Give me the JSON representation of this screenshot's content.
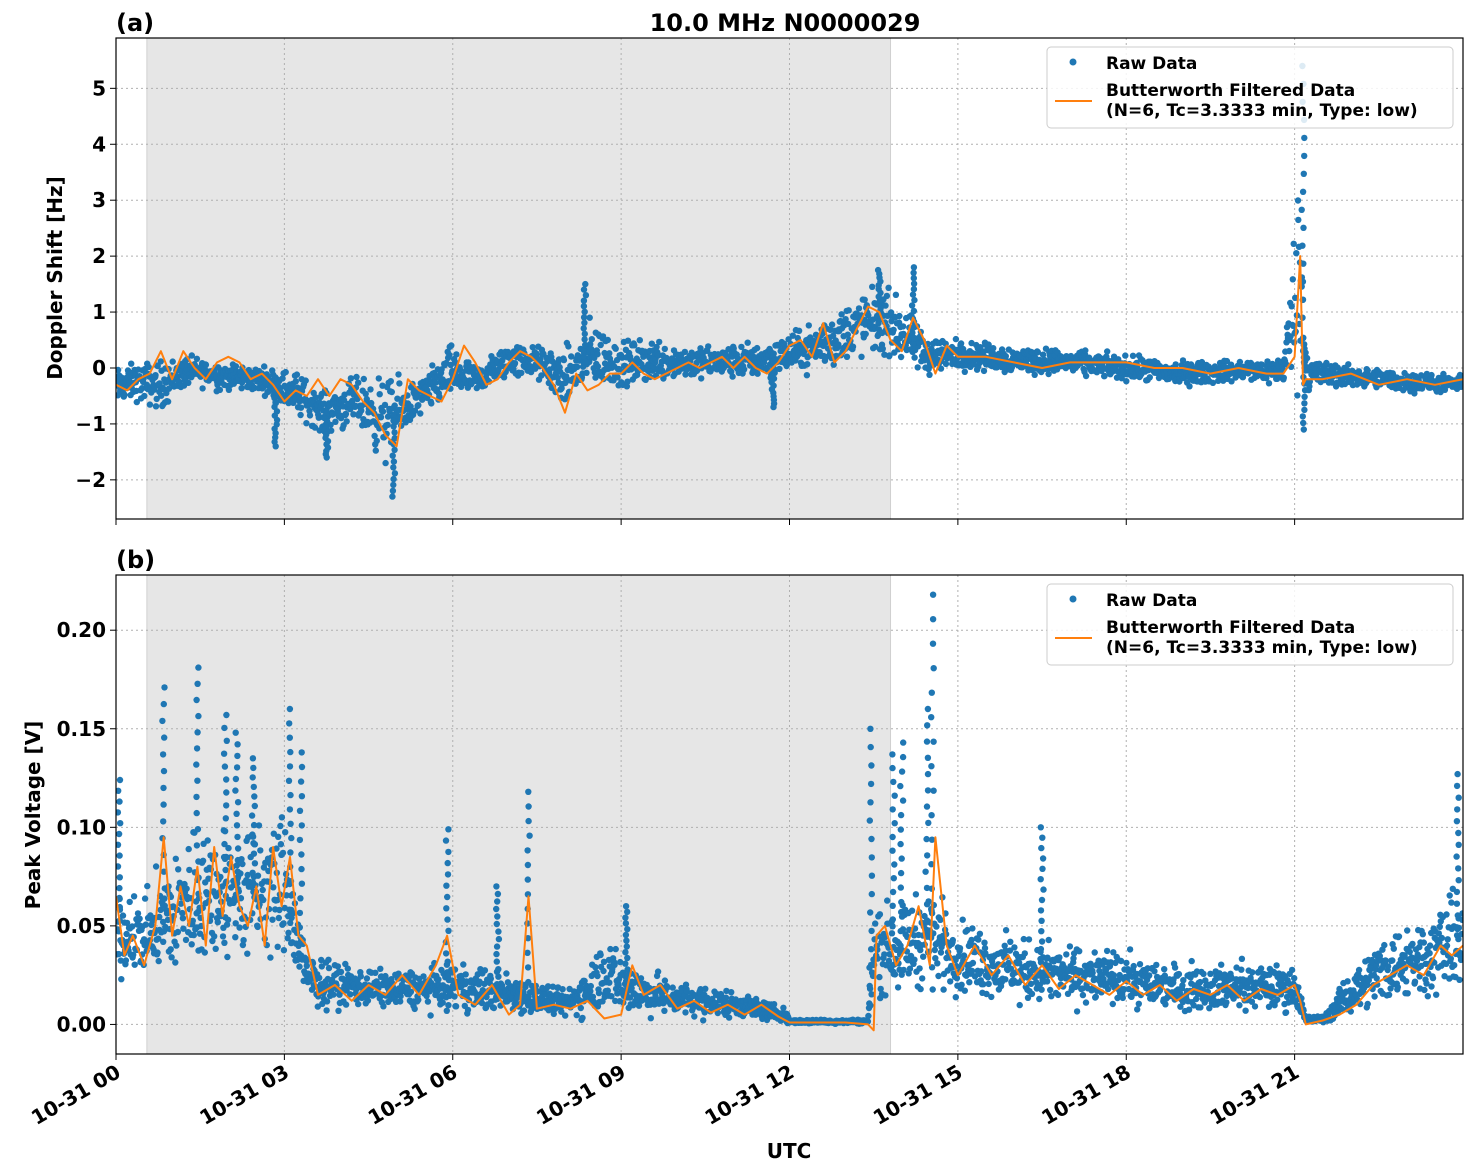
{
  "figure": {
    "title": "10.0 MHz N0000029",
    "xlabel": "UTC",
    "x_ticks": [
      "10-31 00",
      "10-31 03",
      "10-31 06",
      "10-31 09",
      "10-31 12",
      "10-31 15",
      "10-31 18",
      "10-31 21"
    ]
  },
  "colors": {
    "raw": "#1f77b4",
    "filtered": "#ff7f0e",
    "shade": "#e6e6e6",
    "grid": "#b0b0b0"
  },
  "chart_data": [
    {
      "type": "scatter",
      "panel_label": "(a)",
      "title": "10.0 MHz N0000029",
      "xlabel": "",
      "ylabel": "Doppler Shift [Hz]",
      "x_unit": "hours UTC on 10-31",
      "xlim": [
        0,
        24
      ],
      "ylim": [
        -2.7,
        5.9
      ],
      "y_ticks": [
        -2,
        -1,
        0,
        1,
        2,
        3,
        4,
        5
      ],
      "y_tick_labels": [
        "−2",
        "−1",
        "0",
        "1",
        "2",
        "3",
        "4",
        "5"
      ],
      "grid": true,
      "legend_position": "top-right",
      "shaded_interval": [
        0.55,
        13.8
      ],
      "series": [
        {
          "name": "Raw Data",
          "style": "points",
          "envelope": {
            "x": [
              0,
              0.3,
              0.8,
              1.3,
              2.0,
              2.6,
              3.2,
              3.7,
              4.3,
              4.8,
              5.0,
              5.4,
              6.0,
              6.4,
              7.0,
              7.5,
              8.0,
              8.5,
              9.0,
              9.6,
              10.2,
              10.8,
              11.5,
              12.2,
              12.8,
              13.3,
              13.8,
              14.4,
              15.0,
              16.0,
              17.0,
              18.0,
              19.0,
              20.0,
              20.8,
              21.1,
              21.2,
              21.4,
              22.0,
              23.0,
              24.0
            ],
            "low": [
              -0.8,
              -0.7,
              -0.9,
              -0.4,
              -0.5,
              -0.5,
              -1.0,
              -1.3,
              -1.2,
              -2.0,
              -1.6,
              -1.0,
              -0.7,
              -0.6,
              -0.3,
              -0.3,
              -0.9,
              -0.6,
              -0.5,
              -0.4,
              -0.3,
              -0.3,
              -0.3,
              -0.2,
              -0.2,
              0.0,
              0.0,
              -0.3,
              -0.1,
              -0.2,
              -0.2,
              -0.3,
              -0.4,
              -0.3,
              -0.4,
              -0.9,
              -0.5,
              -0.5,
              -0.4,
              -0.5,
              -0.5
            ],
            "high": [
              0.1,
              0.2,
              0.3,
              0.3,
              0.2,
              0.1,
              0.1,
              -0.3,
              0.0,
              0.1,
              0.0,
              -0.1,
              0.6,
              0.1,
              0.6,
              0.5,
              0.5,
              1.1,
              0.6,
              0.7,
              0.5,
              0.5,
              0.6,
              0.8,
              1.2,
              1.6,
              1.6,
              0.8,
              0.6,
              0.5,
              0.4,
              0.3,
              0.2,
              0.2,
              0.3,
              4.5,
              0.5,
              0.3,
              0.1,
              0.0,
              -0.1
            ]
          },
          "spikes": [
            {
              "x": 2.85,
              "y": -1.4
            },
            {
              "x": 3.75,
              "y": -1.6
            },
            {
              "x": 4.95,
              "y": -2.3
            },
            {
              "x": 8.35,
              "y": 1.5
            },
            {
              "x": 14.2,
              "y": 1.8
            },
            {
              "x": 13.6,
              "y": 1.75
            },
            {
              "x": 21.15,
              "y": 5.4
            },
            {
              "x": 21.17,
              "y": -1.1
            },
            {
              "x": 11.7,
              "y": -0.7
            }
          ]
        },
        {
          "name": "Butterworth Filtered Data\n(N=6, Tc=3.3333 min, Type: low)",
          "style": "line",
          "x": [
            0,
            0.2,
            0.4,
            0.6,
            0.8,
            1.0,
            1.2,
            1.4,
            1.6,
            1.8,
            2.0,
            2.2,
            2.4,
            2.6,
            2.8,
            3.0,
            3.2,
            3.4,
            3.6,
            3.8,
            4.0,
            4.2,
            4.4,
            4.6,
            4.8,
            5.0,
            5.2,
            5.4,
            5.6,
            5.8,
            6.0,
            6.2,
            6.4,
            6.6,
            6.8,
            7.0,
            7.2,
            7.4,
            7.6,
            7.8,
            8.0,
            8.2,
            8.4,
            8.6,
            8.8,
            9.0,
            9.2,
            9.4,
            9.6,
            9.8,
            10.0,
            10.2,
            10.4,
            10.6,
            10.8,
            11.0,
            11.2,
            11.4,
            11.6,
            11.8,
            12.0,
            12.2,
            12.4,
            12.6,
            12.8,
            13.0,
            13.2,
            13.4,
            13.6,
            13.8,
            14.0,
            14.2,
            14.4,
            14.6,
            14.8,
            15.0,
            15.5,
            16.0,
            16.5,
            17.0,
            17.5,
            18.0,
            18.5,
            19.0,
            19.5,
            20.0,
            20.5,
            20.8,
            21.0,
            21.1,
            21.15,
            21.2,
            21.3,
            21.5,
            22.0,
            22.5,
            23.0,
            23.5,
            24.0
          ],
          "y": [
            -0.3,
            -0.4,
            -0.2,
            -0.1,
            0.3,
            -0.2,
            0.3,
            0.0,
            -0.2,
            0.1,
            0.2,
            0.1,
            -0.2,
            -0.1,
            -0.3,
            -0.6,
            -0.4,
            -0.5,
            -0.2,
            -0.5,
            -0.2,
            -0.3,
            -0.6,
            -0.8,
            -1.2,
            -1.4,
            -0.2,
            -0.4,
            -0.5,
            -0.6,
            -0.2,
            0.4,
            0.1,
            -0.3,
            -0.2,
            0.1,
            0.3,
            0.2,
            0.0,
            -0.3,
            -0.8,
            -0.1,
            -0.4,
            -0.3,
            -0.1,
            -0.1,
            0.1,
            -0.1,
            -0.2,
            -0.1,
            0.0,
            0.1,
            0.0,
            0.1,
            0.2,
            0.0,
            0.2,
            0.0,
            -0.1,
            0.1,
            0.4,
            0.5,
            0.2,
            0.8,
            0.1,
            0.3,
            0.7,
            1.1,
            1.0,
            0.5,
            0.3,
            0.9,
            0.5,
            -0.1,
            0.4,
            0.2,
            0.2,
            0.1,
            0.0,
            0.1,
            0.1,
            0.1,
            0.0,
            0.0,
            -0.1,
            0.0,
            -0.1,
            -0.1,
            0.2,
            2.0,
            -0.3,
            -0.2,
            -0.2,
            -0.2,
            -0.1,
            -0.3,
            -0.2,
            -0.3,
            -0.2
          ]
        }
      ]
    },
    {
      "type": "scatter",
      "panel_label": "(b)",
      "title": "",
      "xlabel": "UTC",
      "ylabel": "Peak Voltage [V]",
      "x_unit": "hours UTC on 10-31",
      "xlim": [
        0,
        24
      ],
      "ylim": [
        -0.015,
        0.228
      ],
      "y_ticks": [
        0.0,
        0.05,
        0.1,
        0.15,
        0.2
      ],
      "y_tick_labels": [
        "0.00",
        "0.05",
        "0.10",
        "0.15",
        "0.20"
      ],
      "grid": true,
      "legend_position": "top-right",
      "shaded_interval": [
        0.55,
        13.8
      ],
      "series": [
        {
          "name": "Raw Data",
          "style": "points",
          "envelope": {
            "x": [
              0,
              0.5,
              1.0,
              1.5,
              2.0,
              2.5,
              3.0,
              3.4,
              4.0,
              5.0,
              6.0,
              7.0,
              8.0,
              8.3,
              8.7,
              9.0,
              9.5,
              10.0,
              11.0,
              11.9,
              12.0,
              13.0,
              13.4,
              13.5,
              14.0,
              14.5,
              15.0,
              16.0,
              17.0,
              18.0,
              19.0,
              20.0,
              21.0,
              21.2,
              21.5,
              22.0,
              22.5,
              23.0,
              23.5,
              24.0
            ],
            "low": [
              0.015,
              0.02,
              0.01,
              0.015,
              0.02,
              0.015,
              0.02,
              0.005,
              0.005,
              0.005,
              0.003,
              0.002,
              0.001,
              0.0,
              0.0,
              0.0,
              0.001,
              0.001,
              0.001,
              0.0,
              0.0,
              0.0,
              0.0,
              0.005,
              0.01,
              0.01,
              0.01,
              0.005,
              0.005,
              0.005,
              0.003,
              0.003,
              0.003,
              0.0,
              0.0,
              0.002,
              0.005,
              0.005,
              0.008,
              0.01
            ],
            "high": [
              0.08,
              0.07,
              0.1,
              0.12,
              0.11,
              0.12,
              0.12,
              0.04,
              0.035,
              0.03,
              0.035,
              0.03,
              0.02,
              0.03,
              0.055,
              0.04,
              0.03,
              0.025,
              0.02,
              0.01,
              0.003,
              0.003,
              0.003,
              0.07,
              0.07,
              0.08,
              0.06,
              0.05,
              0.045,
              0.04,
              0.035,
              0.035,
              0.035,
              0.005,
              0.005,
              0.03,
              0.05,
              0.06,
              0.065,
              0.08
            ]
          },
          "spikes": [
            {
              "x": 0.05,
              "y": 0.124
            },
            {
              "x": 0.85,
              "y": 0.171
            },
            {
              "x": 1.45,
              "y": 0.181
            },
            {
              "x": 1.95,
              "y": 0.157
            },
            {
              "x": 2.15,
              "y": 0.148
            },
            {
              "x": 2.45,
              "y": 0.135
            },
            {
              "x": 3.1,
              "y": 0.16
            },
            {
              "x": 3.3,
              "y": 0.138
            },
            {
              "x": 5.9,
              "y": 0.099
            },
            {
              "x": 7.35,
              "y": 0.118
            },
            {
              "x": 9.1,
              "y": 0.06
            },
            {
              "x": 13.45,
              "y": 0.15
            },
            {
              "x": 13.85,
              "y": 0.137
            },
            {
              "x": 14.0,
              "y": 0.143
            },
            {
              "x": 14.55,
              "y": 0.218
            },
            {
              "x": 14.45,
              "y": 0.16
            },
            {
              "x": 23.9,
              "y": 0.127
            },
            {
              "x": 16.5,
              "y": 0.1
            },
            {
              "x": 6.8,
              "y": 0.07
            }
          ]
        },
        {
          "name": "Butterworth Filtered Data\n(N=6, Tc=3.3333 min, Type: low)",
          "style": "line",
          "x": [
            0,
            0.15,
            0.3,
            0.5,
            0.7,
            0.85,
            1.0,
            1.15,
            1.3,
            1.45,
            1.6,
            1.75,
            1.9,
            2.05,
            2.2,
            2.35,
            2.5,
            2.65,
            2.8,
            2.95,
            3.1,
            3.25,
            3.4,
            3.6,
            3.9,
            4.2,
            4.5,
            4.8,
            5.1,
            5.4,
            5.7,
            5.9,
            6.1,
            6.4,
            6.7,
            7.0,
            7.2,
            7.35,
            7.5,
            7.8,
            8.1,
            8.4,
            8.7,
            9.0,
            9.2,
            9.4,
            9.7,
            10.0,
            10.3,
            10.6,
            10.9,
            11.2,
            11.5,
            11.8,
            12.0,
            12.5,
            13.0,
            13.4,
            13.5,
            13.55,
            13.7,
            13.9,
            14.1,
            14.3,
            14.5,
            14.6,
            14.8,
            15.0,
            15.3,
            15.6,
            15.9,
            16.2,
            16.5,
            16.8,
            17.1,
            17.4,
            17.7,
            18.0,
            18.3,
            18.6,
            18.9,
            19.2,
            19.5,
            19.8,
            20.1,
            20.4,
            20.7,
            21.0,
            21.1,
            21.2,
            21.5,
            21.8,
            22.1,
            22.4,
            22.7,
            23.0,
            23.3,
            23.6,
            23.8,
            24.0
          ],
          "y": [
            0.065,
            0.035,
            0.045,
            0.03,
            0.05,
            0.095,
            0.045,
            0.07,
            0.05,
            0.08,
            0.04,
            0.09,
            0.055,
            0.085,
            0.06,
            0.05,
            0.07,
            0.04,
            0.09,
            0.06,
            0.085,
            0.045,
            0.04,
            0.015,
            0.02,
            0.012,
            0.02,
            0.015,
            0.025,
            0.015,
            0.03,
            0.045,
            0.015,
            0.01,
            0.02,
            0.005,
            0.01,
            0.065,
            0.008,
            0.01,
            0.008,
            0.012,
            0.003,
            0.005,
            0.03,
            0.015,
            0.02,
            0.008,
            0.012,
            0.006,
            0.01,
            0.005,
            0.01,
            0.004,
            0.001,
            0.001,
            0.001,
            0.0,
            -0.003,
            0.045,
            0.05,
            0.03,
            0.04,
            0.06,
            0.03,
            0.095,
            0.04,
            0.025,
            0.04,
            0.025,
            0.035,
            0.02,
            0.03,
            0.018,
            0.025,
            0.02,
            0.015,
            0.022,
            0.015,
            0.02,
            0.012,
            0.018,
            0.015,
            0.02,
            0.012,
            0.018,
            0.015,
            0.02,
            0.012,
            0.0,
            0.002,
            0.005,
            0.01,
            0.02,
            0.025,
            0.03,
            0.025,
            0.04,
            0.035,
            0.04
          ]
        }
      ]
    }
  ]
}
